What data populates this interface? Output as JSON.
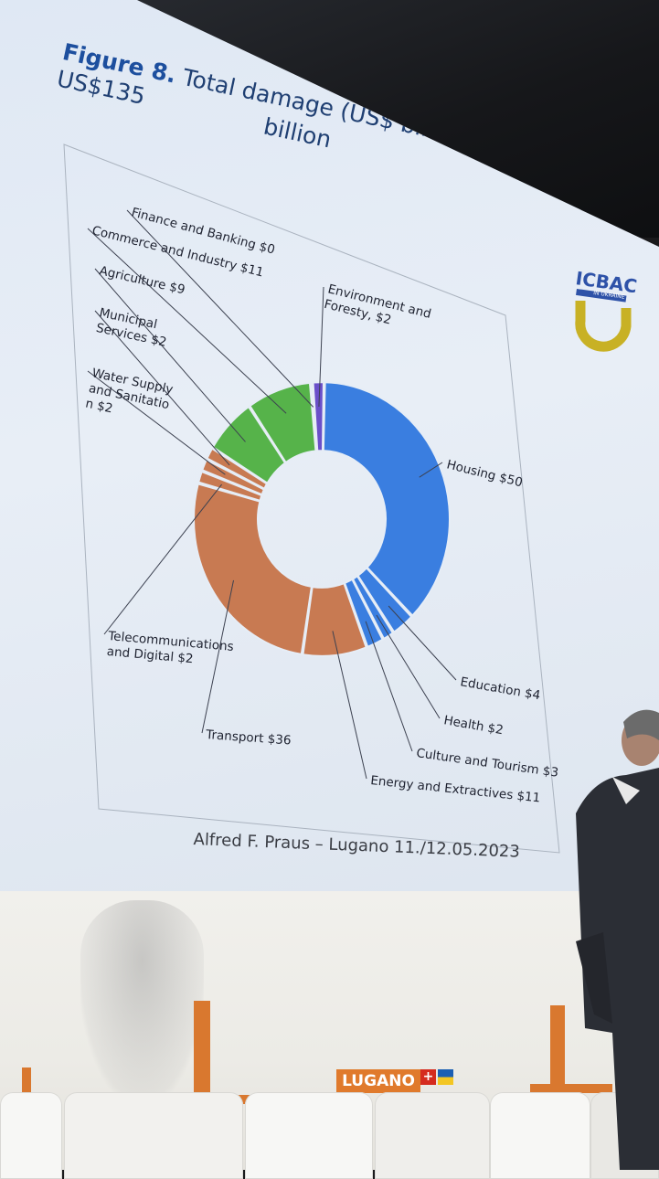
{
  "slide": {
    "title_prefix": "Figure 8.",
    "title_line1": " Total damage (US$ billion): US$135",
    "title_line2": "billion",
    "footer": "Alfred F. Praus – Lugano 11./12.05.2023",
    "logo_text": "ICBAC",
    "logo_subtext": "IN UKRAINE"
  },
  "stage": {
    "sign_text": "LUGANO",
    "swiss_cross": "+"
  },
  "colors": {
    "blue": "#3a7ee0",
    "green": "#56b34a",
    "orange": "#c87a52",
    "purple": "#6a4fc9",
    "title_blue": "#1d4f9e",
    "logo_blue": "#2e52a8",
    "logo_yellow": "#c8b125"
  },
  "chart_data": {
    "type": "pie",
    "variant": "donut",
    "title": "Total damage (US$ billion): US$135 billion",
    "unit": "US$ billion",
    "slices": [
      {
        "label": "Housing $50",
        "name": "Housing",
        "value": 50,
        "color": "#3a7ee0"
      },
      {
        "label": "Education $4",
        "name": "Education",
        "value": 4,
        "color": "#3a7ee0"
      },
      {
        "label": "Health $2",
        "name": "Health",
        "value": 2,
        "color": "#3a7ee0"
      },
      {
        "label": "Culture and Tourism $3",
        "name": "Culture and Tourism",
        "value": 3,
        "color": "#3a7ee0"
      },
      {
        "label": "Energy and Extractives $11",
        "name": "Energy and Extractives",
        "value": 11,
        "color": "#c87a52"
      },
      {
        "label": "Transport $36",
        "name": "Transport",
        "value": 36,
        "color": "#c87a52"
      },
      {
        "label": "Telecommunications and Digital $2",
        "name": "Telecommunications and Digital",
        "value": 2,
        "color": "#c87a52"
      },
      {
        "label": "Water Supply and Sanitation $2",
        "name": "Water Supply and Sanitation",
        "value": 2,
        "color": "#c87a52"
      },
      {
        "label": "Municipal Services $2",
        "name": "Municipal Services",
        "value": 2,
        "color": "#c87a52"
      },
      {
        "label": "Agriculture $9",
        "name": "Agriculture",
        "value": 9,
        "color": "#56b34a"
      },
      {
        "label": "Commerce and Industry $11",
        "name": "Commerce and Industry",
        "value": 11,
        "color": "#56b34a"
      },
      {
        "label": "Finance and Banking $0",
        "name": "Finance and Banking",
        "value": 0.3,
        "color": "#56b34a"
      },
      {
        "label": "Environment and Foresty, $2",
        "name": "Environment and Foresty",
        "value": 2,
        "color": "#6a4fc9"
      }
    ]
  }
}
